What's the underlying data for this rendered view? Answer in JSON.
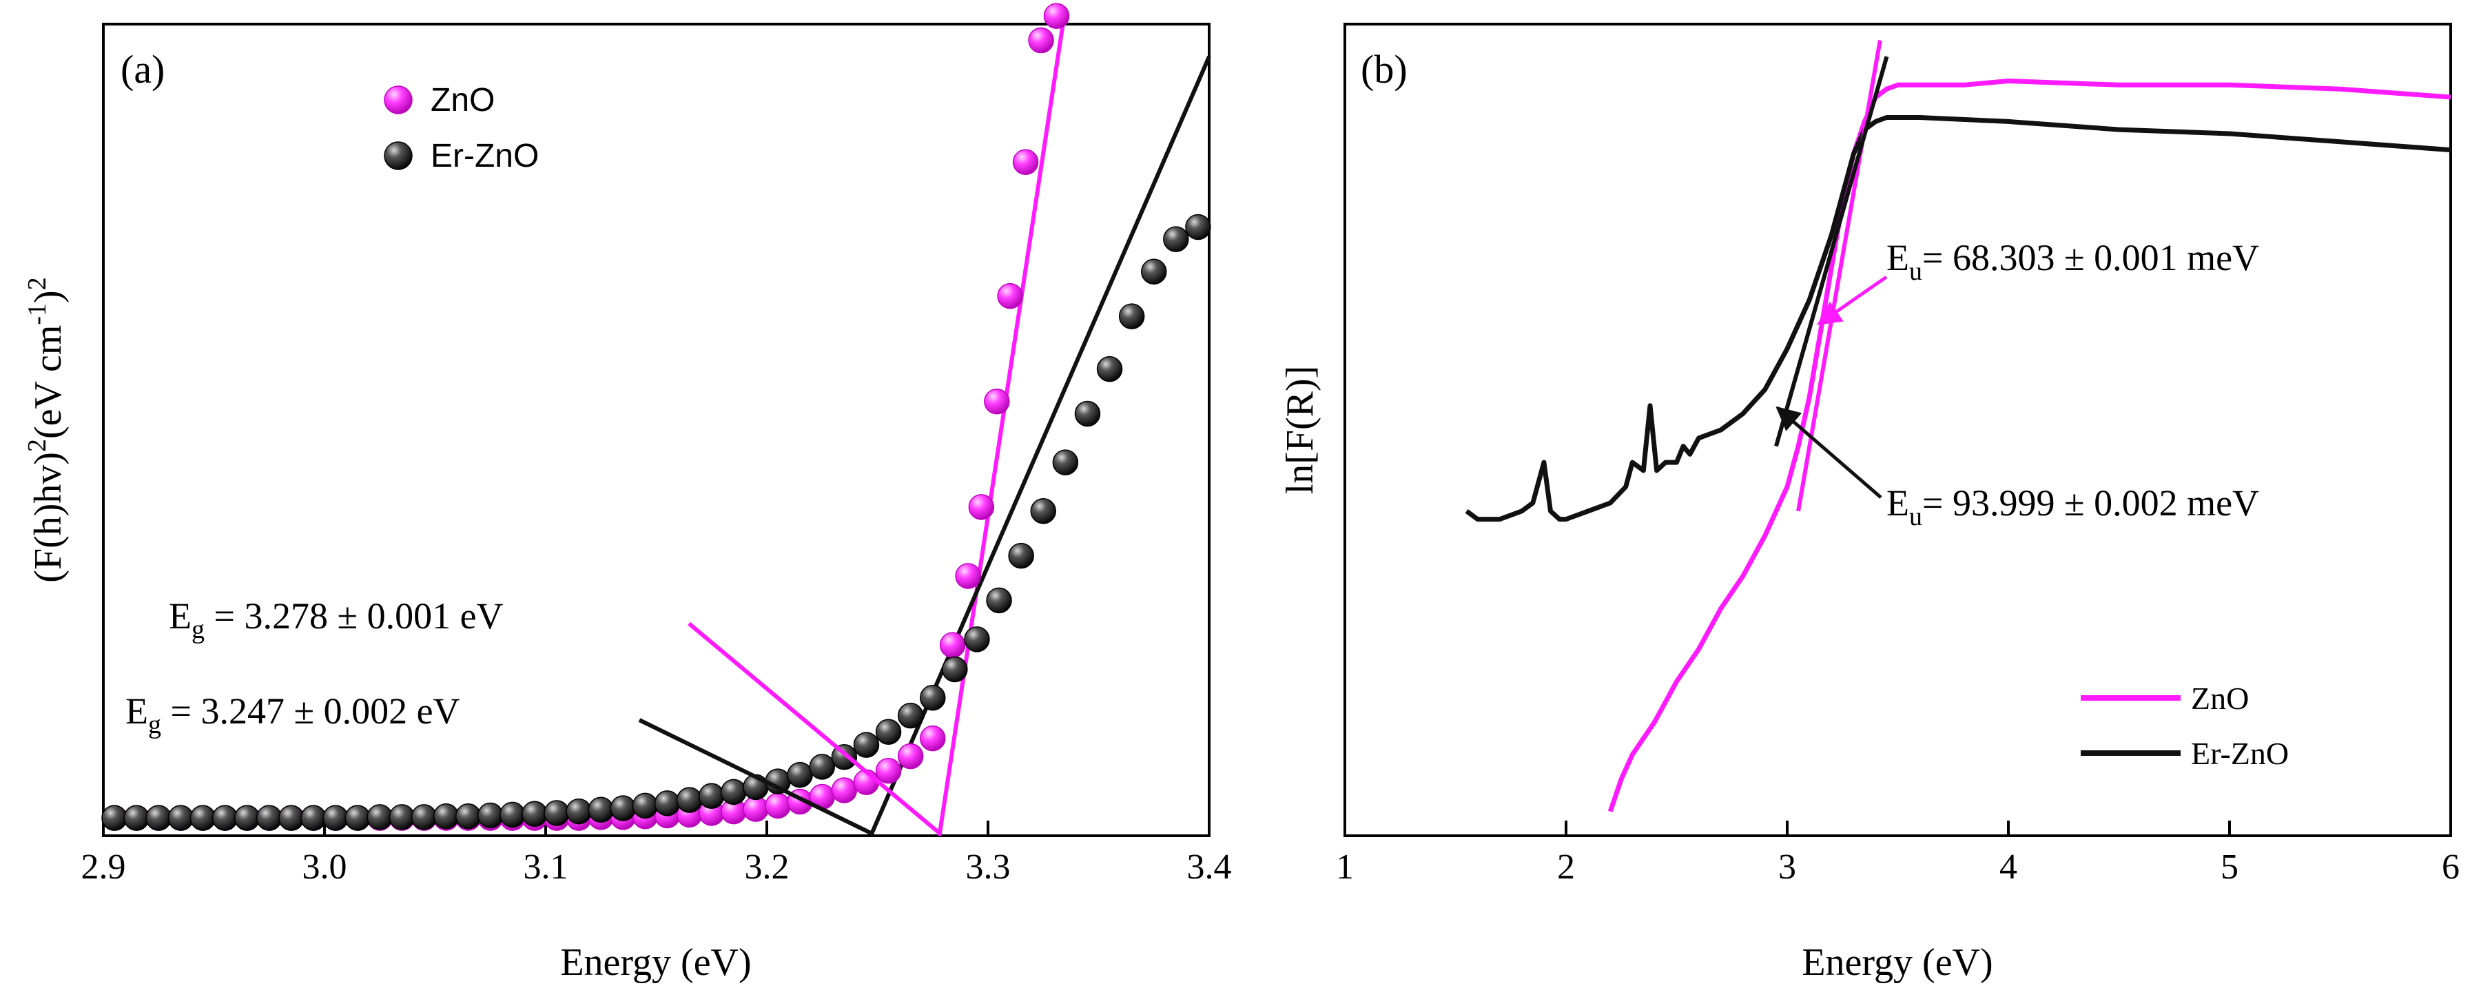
{
  "chart_data": [
    {
      "id": "a",
      "type": "scatter",
      "panel_label": "(a)",
      "xlabel": "Energy (eV)",
      "ylabel": "(F(h)hv)²(eV cm⁻¹)²",
      "ylabel_parts": {
        "base": "(F(h)hv)",
        "sup1": "2",
        "mid": "(eV cm",
        "sup2": "-1",
        "close": ")",
        "sup3": "2"
      },
      "xlim": [
        2.9,
        3.4
      ],
      "ylim": [
        0,
        1.0
      ],
      "x_ticks": [
        "2.9",
        "3.0",
        "3.1",
        "3.2",
        "3.3",
        "3.4"
      ],
      "y_ticks_shown": false,
      "legend": [
        {
          "label": "ZnO",
          "color": "#ff1aff"
        },
        {
          "label": "Er-ZnO",
          "color": "#111111"
        }
      ],
      "series": [
        {
          "name": "ZnO",
          "color": "#ff1aff",
          "x": [
            2.905,
            2.915,
            2.925,
            2.935,
            2.945,
            2.955,
            2.965,
            2.975,
            2.985,
            2.995,
            3.005,
            3.015,
            3.025,
            3.035,
            3.045,
            3.055,
            3.065,
            3.075,
            3.085,
            3.095,
            3.105,
            3.115,
            3.125,
            3.135,
            3.145,
            3.155,
            3.165,
            3.175,
            3.185,
            3.195,
            3.205,
            3.215,
            3.225,
            3.235,
            3.245,
            3.255,
            3.265,
            3.275,
            3.284,
            3.291,
            3.297,
            3.304,
            3.31,
            3.317,
            3.324,
            3.331
          ],
          "y": [
            0.022,
            0.022,
            0.022,
            0.022,
            0.022,
            0.022,
            0.022,
            0.022,
            0.022,
            0.022,
            0.022,
            0.022,
            0.022,
            0.022,
            0.022,
            0.022,
            0.022,
            0.022,
            0.022,
            0.022,
            0.022,
            0.022,
            0.023,
            0.023,
            0.024,
            0.025,
            0.026,
            0.028,
            0.03,
            0.033,
            0.037,
            0.042,
            0.048,
            0.056,
            0.066,
            0.08,
            0.098,
            0.12,
            0.235,
            0.32,
            0.405,
            0.535,
            0.665,
            0.83,
            0.98,
            1.01
          ]
        },
        {
          "name": "Er-ZnO",
          "color": "#111111",
          "x": [
            2.905,
            2.915,
            2.925,
            2.935,
            2.945,
            2.955,
            2.965,
            2.975,
            2.985,
            2.995,
            3.005,
            3.015,
            3.025,
            3.035,
            3.045,
            3.055,
            3.065,
            3.075,
            3.085,
            3.095,
            3.105,
            3.115,
            3.125,
            3.135,
            3.145,
            3.155,
            3.165,
            3.175,
            3.185,
            3.195,
            3.205,
            3.215,
            3.225,
            3.235,
            3.245,
            3.255,
            3.265,
            3.275,
            3.285,
            3.295,
            3.305,
            3.315,
            3.325,
            3.335,
            3.345,
            3.355,
            3.365,
            3.375,
            3.385,
            3.395
          ],
          "y": [
            0.022,
            0.022,
            0.022,
            0.022,
            0.022,
            0.022,
            0.022,
            0.022,
            0.022,
            0.022,
            0.022,
            0.022,
            0.023,
            0.023,
            0.023,
            0.024,
            0.024,
            0.025,
            0.026,
            0.027,
            0.028,
            0.03,
            0.032,
            0.034,
            0.037,
            0.04,
            0.044,
            0.049,
            0.054,
            0.06,
            0.067,
            0.075,
            0.085,
            0.097,
            0.112,
            0.128,
            0.148,
            0.17,
            0.205,
            0.242,
            0.29,
            0.345,
            0.4,
            0.46,
            0.52,
            0.575,
            0.64,
            0.695,
            0.735,
            0.75
          ]
        }
      ],
      "fits": [
        {
          "name": "ZnO fit",
          "color": "#ff1aff",
          "x": [
            3.278,
            3.335
          ],
          "y": [
            0.0,
            1.02
          ]
        },
        {
          "name": "Er-ZnO fit",
          "color": "#111111",
          "x": [
            3.247,
            3.4
          ],
          "y": [
            0.0,
            0.96
          ]
        }
      ],
      "annotations": [
        {
          "base": "E",
          "sub": "g",
          "rest": " = 3.278 ± 0.001 eV",
          "color": "#ff1aff",
          "anchor_x": 3.278
        },
        {
          "base": "E",
          "sub": "g",
          "rest": " = 3.247 ± 0.002 eV",
          "color": "#111111",
          "anchor_x": 3.247
        }
      ]
    },
    {
      "id": "b",
      "type": "line",
      "panel_label": "(b)",
      "xlabel": "Energy (eV)",
      "ylabel": "ln[F(R)]",
      "xlim": [
        1,
        6
      ],
      "ylim": [
        0,
        1.0
      ],
      "x_ticks": [
        "1",
        "2",
        "3",
        "4",
        "5",
        "6"
      ],
      "y_ticks_shown": false,
      "legend": [
        {
          "label": "ZnO",
          "color": "#ff1aff"
        },
        {
          "label": "Er-ZnO",
          "color": "#111111"
        }
      ],
      "series": [
        {
          "name": "ZnO",
          "color": "#ff1aff",
          "x": [
            2.2,
            2.25,
            2.3,
            2.4,
            2.5,
            2.6,
            2.7,
            2.8,
            2.9,
            3.0,
            3.05,
            3.1,
            3.15,
            3.2,
            3.25,
            3.3,
            3.35,
            3.4,
            3.45,
            3.5,
            3.6,
            3.8,
            4.0,
            4.5,
            5.0,
            5.5,
            6.0
          ],
          "y": [
            0.03,
            0.07,
            0.1,
            0.14,
            0.19,
            0.23,
            0.28,
            0.32,
            0.37,
            0.43,
            0.48,
            0.54,
            0.62,
            0.7,
            0.78,
            0.84,
            0.88,
            0.91,
            0.92,
            0.925,
            0.925,
            0.925,
            0.93,
            0.925,
            0.925,
            0.92,
            0.91
          ]
        },
        {
          "name": "Er-ZnO",
          "color": "#111111",
          "x": [
            1.55,
            1.6,
            1.7,
            1.8,
            1.85,
            1.9,
            1.93,
            1.97,
            2.0,
            2.1,
            2.2,
            2.27,
            2.3,
            2.35,
            2.38,
            2.41,
            2.45,
            2.5,
            2.53,
            2.56,
            2.6,
            2.7,
            2.8,
            2.9,
            3.0,
            3.1,
            3.2,
            3.3,
            3.35,
            3.4,
            3.45,
            3.5,
            3.6,
            4.0,
            4.5,
            5.0,
            5.5,
            6.0
          ],
          "y": [
            0.4,
            0.39,
            0.39,
            0.4,
            0.41,
            0.46,
            0.4,
            0.39,
            0.39,
            0.4,
            0.41,
            0.43,
            0.46,
            0.45,
            0.53,
            0.45,
            0.46,
            0.46,
            0.48,
            0.47,
            0.49,
            0.5,
            0.52,
            0.55,
            0.6,
            0.66,
            0.74,
            0.84,
            0.87,
            0.88,
            0.885,
            0.885,
            0.885,
            0.88,
            0.87,
            0.865,
            0.855,
            0.845
          ]
        }
      ],
      "fits": [
        {
          "name": "ZnO Urbach fit",
          "color": "#ff1aff",
          "x": [
            3.05,
            3.42
          ],
          "y": [
            0.4,
            0.98
          ]
        },
        {
          "name": "Er-ZnO Urbach fit",
          "color": "#111111",
          "x": [
            2.95,
            3.45
          ],
          "y": [
            0.48,
            0.96
          ]
        }
      ],
      "annotations": [
        {
          "base": "E",
          "sub": "u",
          "rest": "= 68.303 ± 0.001 meV",
          "color": "#ff1aff"
        },
        {
          "base": "E",
          "sub": "u",
          "rest": "= 93.999 ± 0.002 meV",
          "color": "#111111"
        }
      ]
    }
  ]
}
